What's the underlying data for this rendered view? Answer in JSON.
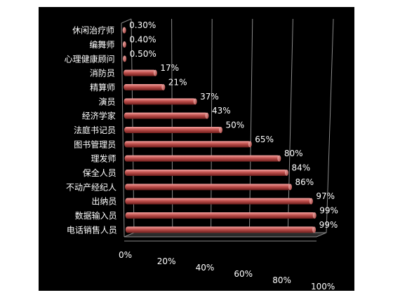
{
  "chart_data": {
    "type": "bar",
    "orientation": "horizontal",
    "style": "3d-cylinder",
    "categories": [
      "休闲治疗师",
      "编舞师",
      "心理健康顾问",
      "消防员",
      "精算师",
      "演员",
      "经济学家",
      "法庭书记员",
      "图书管理员",
      "理发师",
      "保全人员",
      "不动产经纪人",
      "出纳员",
      "数据输入员",
      "电话销售人员"
    ],
    "values": [
      0.3,
      0.4,
      0.5,
      17,
      21,
      37,
      43,
      50,
      65,
      80,
      84,
      86,
      97,
      99,
      99
    ],
    "value_labels": [
      "0.30%",
      "0.40%",
      "0.50%",
      "17%",
      "21%",
      "37%",
      "43%",
      "50%",
      "65%",
      "80%",
      "84%",
      "86%",
      "97%",
      "99%",
      "99%"
    ],
    "x_ticks": [
      "0%",
      "20%",
      "40%",
      "60%",
      "80%",
      "100%"
    ],
    "xlim": [
      0,
      100
    ],
    "grid": true,
    "legend": "none",
    "colors": {
      "bar": "#c0504d",
      "background": "#000000",
      "text": "#ffffff",
      "grid": "#8a8a8a"
    }
  }
}
